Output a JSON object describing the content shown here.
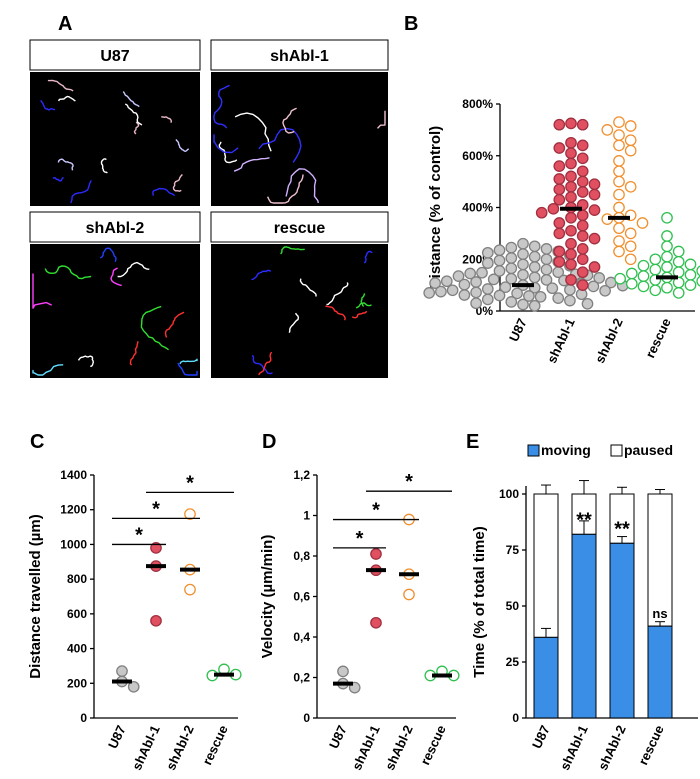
{
  "panels": {
    "a": {
      "label": "A",
      "images": [
        {
          "title": "U87",
          "palette": [
            "#2b2bff",
            "#e8b8c8",
            "#ffffff",
            "#c8c8ff"
          ]
        },
        {
          "title": "shAbl-1",
          "palette": [
            "#3030ff",
            "#f0c0d0",
            "#ffffff",
            "#d0b0ff"
          ]
        },
        {
          "title": "shAbl-2",
          "palette": [
            "#2040ff",
            "#ff3030",
            "#30e030",
            "#ff40ff",
            "#60e0ff",
            "#ffffff"
          ]
        },
        {
          "title": "rescue",
          "palette": [
            "#2b2bff",
            "#ff3030",
            "#30e030",
            "#ffffff"
          ]
        }
      ]
    },
    "b": {
      "label": "B"
    },
    "c": {
      "label": "C"
    },
    "d": {
      "label": "D"
    },
    "e": {
      "label": "E"
    }
  },
  "chart_data": [
    {
      "id": "B",
      "type": "scatter",
      "ylabel": "Distance (% of control)",
      "categories": [
        "U87",
        "shAbl-1",
        "shAbl-2",
        "rescue"
      ],
      "ylim": [
        0,
        800
      ],
      "yticks": [
        0,
        200,
        400,
        600,
        800
      ],
      "ytick_labels": [
        "0%",
        "200%",
        "400%",
        "600%",
        "800%"
      ],
      "colors": {
        "fill": [
          "#c8c8c8",
          "#e05060",
          "#ffffff",
          "#ffffff"
        ],
        "stroke": [
          "#808080",
          "#a03040",
          "#f09030",
          "#30c050"
        ]
      },
      "medians": [
        100,
        395,
        360,
        130
      ],
      "series": [
        {
          "name": "U87",
          "values": [
            260,
            250,
            245,
            240,
            235,
            230,
            225,
            220,
            215,
            210,
            205,
            200,
            195,
            190,
            185,
            180,
            175,
            170,
            165,
            160,
            155,
            150,
            148,
            145,
            142,
            140,
            138,
            135,
            130,
            128,
            125,
            122,
            120,
            118,
            115,
            112,
            110,
            108,
            105,
            102,
            100,
            98,
            95,
            92,
            90,
            88,
            85,
            82,
            80,
            78,
            75,
            72,
            70,
            68,
            65,
            62,
            60,
            58,
            55,
            50,
            45,
            40,
            35,
            30,
            28,
            25,
            20
          ]
        },
        {
          "name": "shAbl-1",
          "values": [
            725,
            720,
            720,
            650,
            640,
            630,
            610,
            590,
            570,
            560,
            540,
            520,
            510,
            500,
            490,
            480,
            470,
            460,
            450,
            440,
            430,
            410,
            400,
            395,
            390,
            380,
            370,
            360,
            340,
            330,
            310,
            300,
            290,
            280,
            260,
            240,
            230,
            220,
            200,
            190,
            180,
            170,
            150,
            120,
            100
          ]
        },
        {
          "name": "shAbl-2",
          "values": [
            730,
            715,
            700,
            680,
            660,
            640,
            620,
            580,
            540,
            500,
            480,
            450,
            400,
            370,
            360,
            355,
            340,
            320,
            300,
            270,
            250,
            230,
            200
          ]
        },
        {
          "name": "rescue",
          "values": [
            360,
            290,
            250,
            230,
            210,
            200,
            190,
            180,
            175,
            170,
            160,
            155,
            150,
            145,
            140,
            138,
            135,
            130,
            125,
            120,
            115,
            110,
            105,
            100,
            95,
            90,
            80,
            70
          ]
        }
      ]
    },
    {
      "id": "C",
      "type": "scatter",
      "ylabel": "Distance travelled (µm)",
      "categories": [
        "U87",
        "shAbl-1",
        "shAbl-2",
        "rescue"
      ],
      "ylim": [
        0,
        1400
      ],
      "yticks": [
        0,
        200,
        400,
        600,
        800,
        1000,
        1200,
        1400
      ],
      "ytick_labels": [
        "0",
        "200",
        "400",
        "600",
        "800",
        "1000",
        "1200",
        "1400"
      ],
      "colors": {
        "fill": [
          "#c8c8c8",
          "#e05060",
          "#ffffff",
          "#ffffff"
        ],
        "stroke": [
          "#808080",
          "#a03040",
          "#f09030",
          "#30c050"
        ]
      },
      "medians": [
        210,
        875,
        855,
        250
      ],
      "series": [
        {
          "name": "U87",
          "values": [
            270,
            210,
            180
          ]
        },
        {
          "name": "shAbl-1",
          "values": [
            980,
            875,
            560
          ]
        },
        {
          "name": "shAbl-2",
          "values": [
            1175,
            855,
            740
          ]
        },
        {
          "name": "rescue",
          "values": [
            280,
            250,
            245
          ]
        }
      ],
      "significance": [
        {
          "from": 0,
          "to": 1,
          "y": 1000,
          "label": "*"
        },
        {
          "from": 0,
          "to": 2,
          "y": 1150,
          "label": "*"
        },
        {
          "from": 1,
          "to": 3,
          "y": 1300,
          "label": "*"
        }
      ]
    },
    {
      "id": "D",
      "type": "scatter",
      "ylabel": "Velocity (µm/min)",
      "categories": [
        "U87",
        "shAbl-1",
        "shAbl-2",
        "rescue"
      ],
      "ylim": [
        0,
        1.2
      ],
      "yticks": [
        0,
        0.2,
        0.4,
        0.6,
        0.8,
        1.0,
        1.2
      ],
      "ytick_labels": [
        "0",
        "0,2",
        "0,4",
        "0,6",
        "0,8",
        "1",
        "1,2"
      ],
      "colors": {
        "fill": [
          "#c8c8c8",
          "#e05060",
          "#ffffff",
          "#ffffff"
        ],
        "stroke": [
          "#808080",
          "#a03040",
          "#f09030",
          "#30c050"
        ]
      },
      "medians": [
        0.17,
        0.73,
        0.71,
        0.21
      ],
      "series": [
        {
          "name": "U87",
          "values": [
            0.23,
            0.17,
            0.15
          ]
        },
        {
          "name": "shAbl-1",
          "values": [
            0.81,
            0.73,
            0.47
          ]
        },
        {
          "name": "shAbl-2",
          "values": [
            0.98,
            0.71,
            0.61
          ]
        },
        {
          "name": "rescue",
          "values": [
            0.23,
            0.21,
            0.21
          ]
        }
      ],
      "significance": [
        {
          "from": 0,
          "to": 1,
          "y": 0.84,
          "label": "*"
        },
        {
          "from": 0,
          "to": 2,
          "y": 0.98,
          "label": "*"
        },
        {
          "from": 1,
          "to": 3,
          "y": 1.12,
          "label": "*"
        }
      ]
    },
    {
      "id": "E",
      "type": "bar",
      "ylabel": "Time (% of total time)",
      "categories": [
        "U87",
        "shAbl-1",
        "shAbl-2",
        "rescue"
      ],
      "ylim": [
        0,
        100
      ],
      "yticks": [
        0,
        25,
        50,
        75,
        100
      ],
      "ytick_labels": [
        "0",
        "25",
        "50",
        "75",
        "100"
      ],
      "legend_position": "top",
      "series": [
        {
          "name": "moving",
          "color": "#3a8ee6",
          "values": [
            36,
            82,
            78,
            41
          ],
          "errors": [
            4,
            6,
            3,
            2
          ]
        },
        {
          "name": "paused",
          "color": "#ffffff",
          "values": [
            64,
            18,
            22,
            59
          ],
          "errors": [
            4,
            6,
            3,
            2
          ]
        }
      ],
      "annotations": [
        "",
        "**",
        "**",
        "ns"
      ]
    }
  ]
}
